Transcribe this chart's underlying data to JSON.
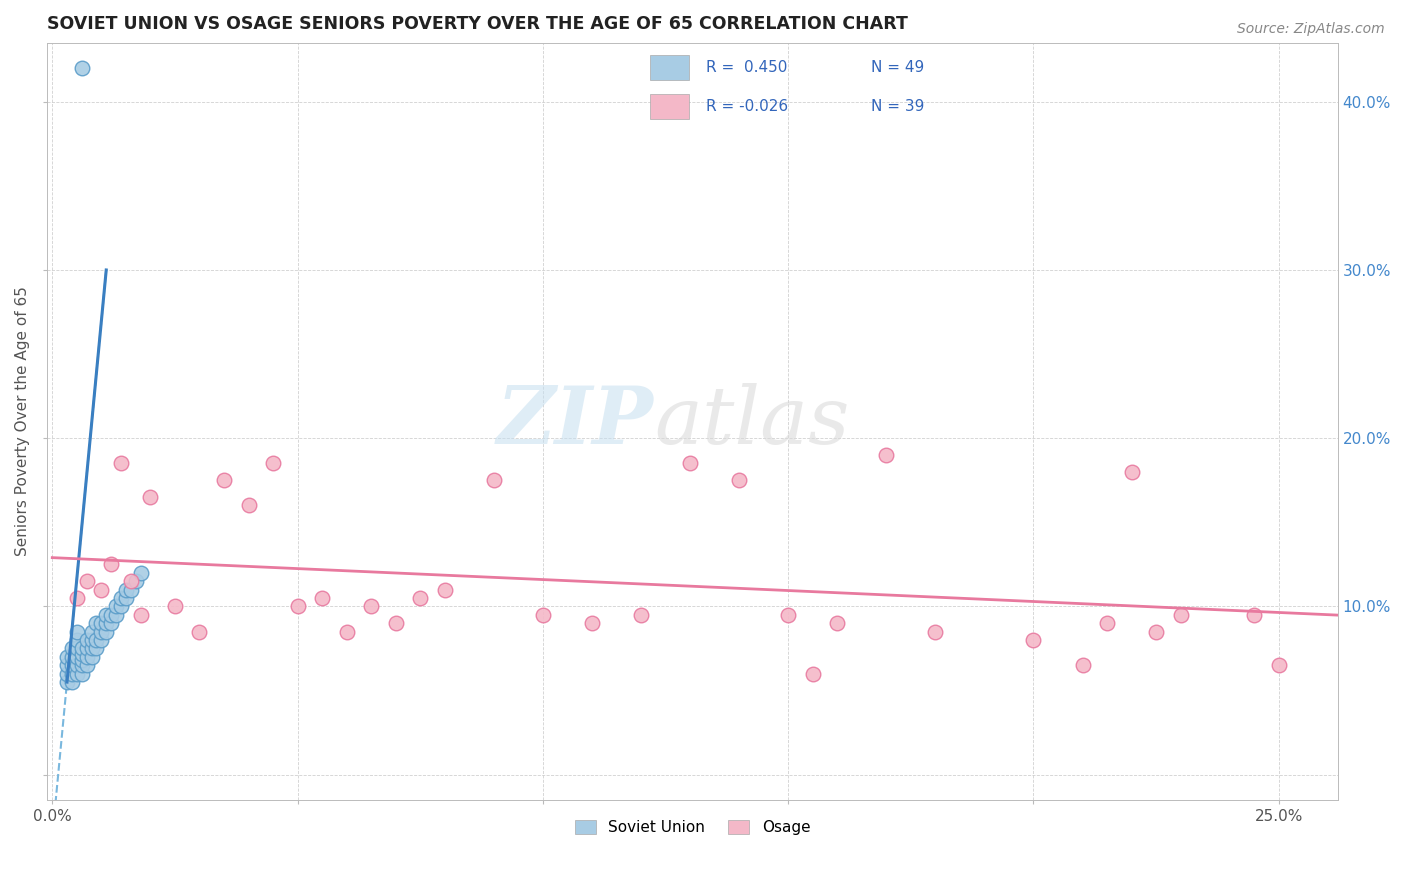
{
  "title": "SOVIET UNION VS OSAGE SENIORS POVERTY OVER THE AGE OF 65 CORRELATION CHART",
  "source": "Source: ZipAtlas.com",
  "ylabel_label": "Seniors Poverty Over the Age of 65",
  "xlim": [
    -0.001,
    0.262
  ],
  "ylim": [
    -0.015,
    0.435
  ],
  "blue_color": "#a8cce4",
  "blue_edge": "#5b9dc9",
  "pink_color": "#f4b8c8",
  "pink_edge": "#e87aa0",
  "trend_blue": "#3a7fc1",
  "trend_pink": "#e8799e",
  "legend_r1": "R =  0.450",
  "legend_n1": "N = 49",
  "legend_r2": "R = -0.026",
  "legend_n2": "N = 39",
  "soviet_x": [
    0.003,
    0.003,
    0.003,
    0.003,
    0.004,
    0.004,
    0.004,
    0.004,
    0.004,
    0.005,
    0.005,
    0.005,
    0.005,
    0.005,
    0.005,
    0.006,
    0.006,
    0.006,
    0.006,
    0.006,
    0.007,
    0.007,
    0.007,
    0.007,
    0.008,
    0.008,
    0.008,
    0.008,
    0.009,
    0.009,
    0.009,
    0.01,
    0.01,
    0.01,
    0.011,
    0.011,
    0.011,
    0.012,
    0.012,
    0.013,
    0.013,
    0.014,
    0.014,
    0.015,
    0.015,
    0.016,
    0.017,
    0.018,
    0.006
  ],
  "soviet_y": [
    0.055,
    0.06,
    0.065,
    0.07,
    0.055,
    0.06,
    0.065,
    0.07,
    0.075,
    0.06,
    0.065,
    0.07,
    0.075,
    0.08,
    0.085,
    0.06,
    0.065,
    0.068,
    0.072,
    0.075,
    0.065,
    0.07,
    0.075,
    0.08,
    0.07,
    0.075,
    0.08,
    0.085,
    0.075,
    0.08,
    0.09,
    0.08,
    0.085,
    0.09,
    0.085,
    0.09,
    0.095,
    0.09,
    0.095,
    0.095,
    0.1,
    0.1,
    0.105,
    0.105,
    0.11,
    0.11,
    0.115,
    0.12,
    0.42
  ],
  "osage_x": [
    0.005,
    0.007,
    0.01,
    0.012,
    0.014,
    0.016,
    0.018,
    0.02,
    0.025,
    0.03,
    0.035,
    0.04,
    0.045,
    0.05,
    0.055,
    0.06,
    0.065,
    0.07,
    0.075,
    0.08,
    0.09,
    0.1,
    0.11,
    0.12,
    0.13,
    0.14,
    0.15,
    0.155,
    0.16,
    0.17,
    0.18,
    0.2,
    0.21,
    0.215,
    0.22,
    0.225,
    0.23,
    0.245,
    0.25
  ],
  "osage_y": [
    0.105,
    0.115,
    0.11,
    0.125,
    0.185,
    0.115,
    0.095,
    0.165,
    0.1,
    0.085,
    0.175,
    0.16,
    0.185,
    0.1,
    0.105,
    0.085,
    0.1,
    0.09,
    0.105,
    0.11,
    0.175,
    0.095,
    0.09,
    0.095,
    0.185,
    0.175,
    0.095,
    0.06,
    0.09,
    0.19,
    0.085,
    0.08,
    0.065,
    0.09,
    0.18,
    0.085,
    0.095,
    0.095,
    0.065
  ]
}
